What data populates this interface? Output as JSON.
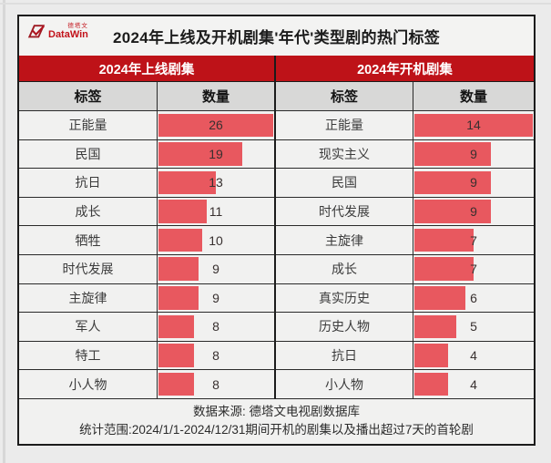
{
  "header": {
    "logo": {
      "brand": "DataWin",
      "brand_cn": "德塔文"
    },
    "title": "2024年上线及开机剧集'年代'类型剧的热门标签"
  },
  "colors": {
    "deep_red": "#be1218",
    "bar_red": "#e8585f"
  },
  "chart_data": [
    {
      "type": "bar",
      "title": "2024年上线剧集",
      "columns": [
        "标签",
        "数量"
      ],
      "categories": [
        "正能量",
        "民国",
        "抗日",
        "成长",
        "牺牲",
        "时代发展",
        "主旋律",
        "军人",
        "特工",
        "小人物"
      ],
      "values": [
        26,
        19,
        13,
        11,
        10,
        9,
        9,
        8,
        8,
        8
      ],
      "xlim": [
        0,
        26
      ],
      "orientation": "horizontal",
      "legend": "none",
      "grid": false
    },
    {
      "type": "bar",
      "title": "2024年开机剧集",
      "columns": [
        "标签",
        "数量"
      ],
      "categories": [
        "正能量",
        "现实主义",
        "民国",
        "时代发展",
        "主旋律",
        "成长",
        "真实历史",
        "历史人物",
        "抗日",
        "小人物"
      ],
      "values": [
        14,
        9,
        9,
        9,
        7,
        7,
        6,
        5,
        4,
        4
      ],
      "xlim": [
        0,
        14
      ],
      "orientation": "horizontal",
      "legend": "none",
      "grid": false
    }
  ],
  "footer": {
    "line1": "数据来源: 德塔文电视剧数据库",
    "line2": "统计范围:2024/1/1-2024/12/31期间开机的剧集以及播出超过7天的首轮剧"
  }
}
